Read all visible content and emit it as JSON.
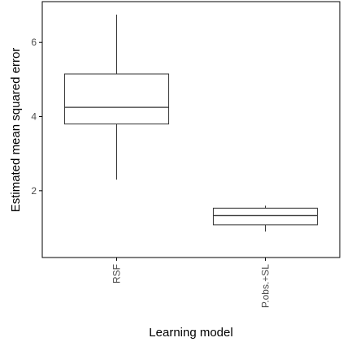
{
  "chart_data": {
    "type": "boxplot",
    "title": "",
    "xlabel": "Learning model",
    "ylabel": "Estimated mean squared error",
    "categories": [
      "RSF",
      "P.obs.+SL"
    ],
    "boxes": [
      {
        "category": "RSF",
        "min": 2.3,
        "q1": 3.8,
        "median": 4.25,
        "q3": 5.15,
        "max": 6.75
      },
      {
        "category": "P.obs.+SL",
        "min": 0.9,
        "q1": 1.08,
        "median": 1.33,
        "q3": 1.53,
        "max": 1.6
      }
    ],
    "yticks": [
      2,
      4,
      6
    ],
    "ylim": [
      0.2,
      7.1
    ],
    "grid": false,
    "legend": "none",
    "colors": {
      "axis": "#000000",
      "tick_text": "#4d4d4d",
      "box_fill": "#ffffff",
      "box_stroke": "#333333"
    }
  }
}
